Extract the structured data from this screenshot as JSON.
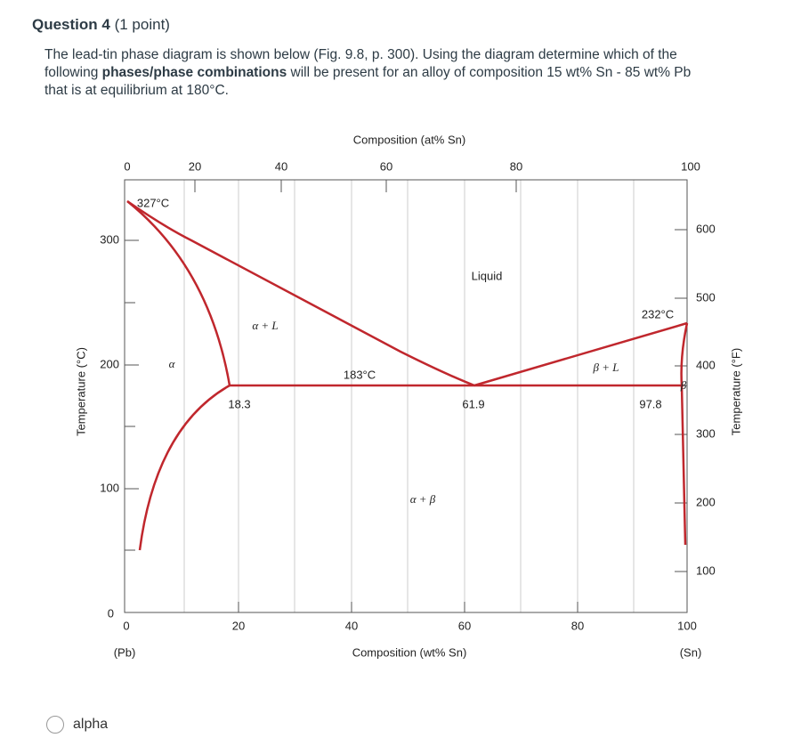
{
  "question": {
    "title": "Question 4",
    "points": "(1 point)",
    "text_before": "The lead-tin phase diagram is shown below (Fig. 9.8, p. 300).  Using the diagram determine which of the following ",
    "text_bold": "phases/phase combinations",
    "text_after": " will be present for an alloy of composition 15 wt% Sn - 85 wt% Pb that is at equilibrium at 180°C."
  },
  "diagram": {
    "top_axis_title": "Composition (at% Sn)",
    "top_ticks": [
      "0",
      "20",
      "40",
      "60",
      "80",
      "100"
    ],
    "bottom_axis_title": "Composition (wt% Sn)",
    "bottom_ticks": [
      "0",
      "20",
      "40",
      "60",
      "80",
      "100"
    ],
    "left_axis_title": "Temperature (°C)",
    "left_ticks": [
      "0",
      "100",
      "200",
      "300"
    ],
    "right_axis_title": "Temperature (°F)",
    "right_ticks": [
      "100",
      "200",
      "300",
      "400",
      "500",
      "600"
    ],
    "end_labels": [
      "(Pb)",
      "(Sn)"
    ],
    "regions": [
      "Liquid",
      "α + L",
      "β + L",
      "α + β",
      "α",
      "β"
    ],
    "annotations": [
      "327°C",
      "232°C",
      "183°C",
      "18.3",
      "61.9",
      "97.8"
    ]
  },
  "options": [
    {
      "label": "alpha"
    }
  ]
}
